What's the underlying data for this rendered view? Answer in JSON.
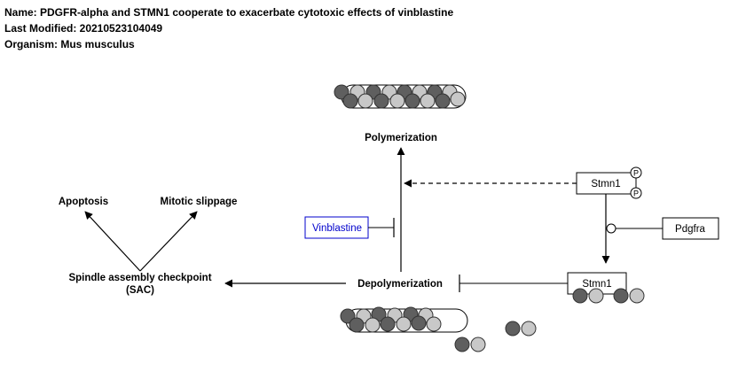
{
  "header": {
    "name": "Name: PDGFR-alpha and STMN1 cooperate to exacerbate cytotoxic effects of vinblastine",
    "modified": "Last Modified: 20210523104049",
    "organism": "Organism: Mus musculus"
  },
  "labels": {
    "polymerization": "Polymerization",
    "depolymerization": "Depolymerization",
    "apoptosis": "Apoptosis",
    "mitotic_slippage": "Mitotic slippage",
    "sac_line1": "Spindle assembly checkpoint",
    "sac_line2": "(SAC)"
  },
  "nodes": {
    "vinblastine": "Vinblastine",
    "stmn1_top": "Stmn1",
    "stmn1_bottom": "Stmn1",
    "pdgfra": "Pdgfra",
    "phospho": "P"
  },
  "colors": {
    "dark_tubulin": "#5f5f5f",
    "light_tubulin": "#c8c8c8",
    "vinblastine": "#0000cc",
    "line": "#000000"
  }
}
